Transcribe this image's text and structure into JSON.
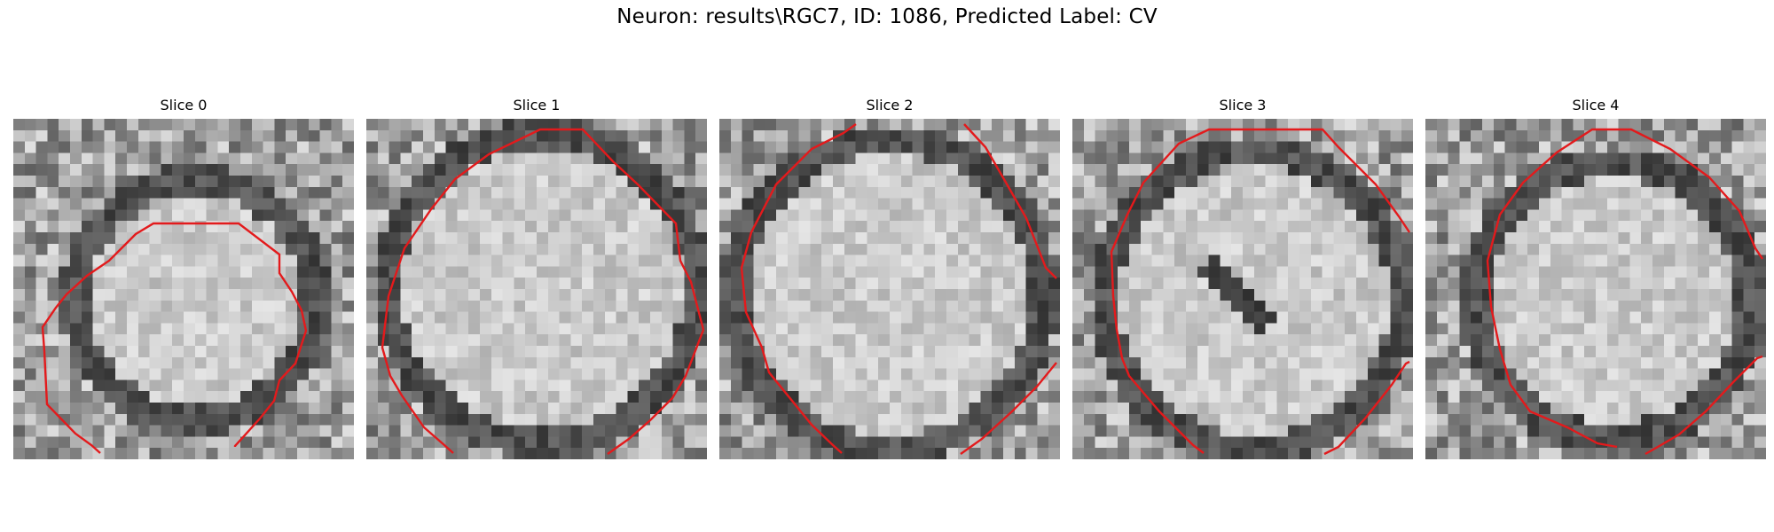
{
  "figure": {
    "title": "Neuron: results\\RGC7, ID: 1086, Predicted Label: CV",
    "contour_color": "#e31a1c",
    "colormap": "gray",
    "slices": [
      {
        "title": "Slice 0"
      },
      {
        "title": "Slice 1"
      },
      {
        "title": "Slice 2"
      },
      {
        "title": "Slice 3"
      },
      {
        "title": "Slice 4"
      }
    ]
  }
}
